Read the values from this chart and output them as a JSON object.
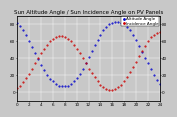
{
  "title": "Sun Altitude Angle / Sun Incidence Angle on PV Panels",
  "legend": [
    "Altitude Angle",
    "Incidence Angle"
  ],
  "line_colors": [
    "#0000cc",
    "#cc0000"
  ],
  "bg_color": "#c8c8c8",
  "plot_bg": "#c8c8c8",
  "grid_color": "#ffffff",
  "xlim": [
    0,
    24
  ],
  "ylim": [
    -10,
    90
  ],
  "altitude_x": [
    0,
    0.5,
    1,
    1.5,
    2,
    2.5,
    3,
    3.5,
    4,
    4.5,
    5,
    5.5,
    6,
    6.5,
    7,
    7.5,
    8,
    8.5,
    9,
    9.5,
    10,
    10.5,
    11,
    11.5,
    12,
    12.5,
    13,
    13.5,
    14,
    14.5,
    15,
    15.5,
    16,
    16.5,
    17,
    17.5,
    18,
    18.5,
    19,
    19.5,
    20,
    20.5,
    21,
    21.5,
    22,
    22.5,
    23,
    23.5,
    24
  ],
  "altitude_y": [
    82,
    78,
    73,
    67,
    60,
    53,
    46,
    39,
    32,
    26,
    21,
    16,
    13,
    10,
    8,
    7,
    7,
    8,
    10,
    13,
    17,
    22,
    28,
    35,
    42,
    49,
    56,
    62,
    68,
    73,
    77,
    80,
    82,
    83,
    83,
    82,
    80,
    77,
    73,
    68,
    62,
    55,
    48,
    41,
    34,
    27,
    21,
    15,
    10
  ],
  "incidence_x": [
    0,
    0.5,
    1,
    1.5,
    2,
    2.5,
    3,
    3.5,
    4,
    4.5,
    5,
    5.5,
    6,
    6.5,
    7,
    7.5,
    8,
    8.5,
    9,
    9.5,
    10,
    10.5,
    11,
    11.5,
    12,
    12.5,
    13,
    13.5,
    14,
    14.5,
    15,
    15.5,
    16,
    16.5,
    17,
    17.5,
    18,
    18.5,
    19,
    19.5,
    20,
    20.5,
    21,
    21.5,
    22,
    22.5,
    23,
    23.5,
    24
  ],
  "incidence_y": [
    5,
    8,
    12,
    17,
    22,
    28,
    34,
    40,
    46,
    51,
    56,
    60,
    63,
    65,
    66,
    66,
    65,
    63,
    60,
    56,
    51,
    46,
    40,
    34,
    28,
    23,
    18,
    13,
    9,
    6,
    4,
    3,
    3,
    4,
    6,
    9,
    13,
    18,
    24,
    30,
    36,
    43,
    49,
    55,
    61,
    65,
    68,
    70,
    71
  ],
  "title_fontsize": 4.0,
  "tick_fontsize": 3.0,
  "legend_fontsize": 3.0,
  "marker_size": 1.0,
  "xtick_step": 2,
  "yticks": [
    0,
    20,
    40,
    60,
    80
  ],
  "xlabel_vals": [
    0,
    2,
    4,
    6,
    8,
    10,
    12,
    14,
    16,
    18,
    20,
    22,
    24
  ]
}
